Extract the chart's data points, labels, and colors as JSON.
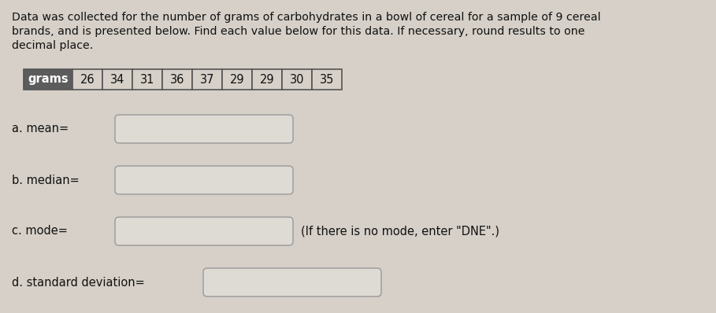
{
  "title_text": "Data was collected for the number of grams of carbohydrates in a bowl of cereal for a sample of 9 cereal\nbrands, and is presented below. Find each value below for this data. If necessary, round results to one\ndecimal place.",
  "table_header": "grams",
  "table_values": [
    26,
    34,
    31,
    36,
    37,
    29,
    29,
    30,
    35
  ],
  "labels": [
    "a. mean=",
    "b. median=",
    "c. mode=",
    "d. standard deviation="
  ],
  "extra_text": "(If there is no mode, enter \"DNE\".)",
  "bg_color": "#d6d0c8",
  "box_fill_color": "#dedad4",
  "table_bg_color": "#d6d0c8",
  "table_header_bg": "#5c5c5c",
  "table_header_fg": "#ffffff",
  "table_border_color": "#555555",
  "box_border_color": "#999999",
  "text_color": "#111111",
  "font_size_title": 10.2,
  "font_size_table": 10.5,
  "font_size_labels": 10.5
}
